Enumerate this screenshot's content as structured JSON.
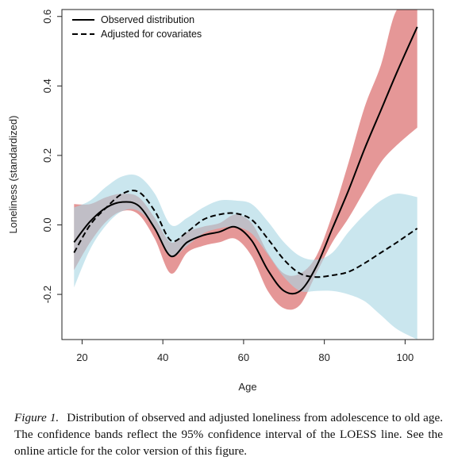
{
  "caption": {
    "label": "Figure 1.",
    "text": "Distribution of observed and adjusted loneliness from adolescence to old age. The confidence bands reflect the 95% confidence interval of the LOESS line. See the online article for the color version of this figure."
  },
  "chart_data": {
    "type": "line",
    "title": "",
    "xlabel": "Age",
    "ylabel": "Loneliness (standardized)",
    "xlim": [
      15,
      107
    ],
    "ylim": [
      -0.33,
      0.62
    ],
    "xticks": [
      20,
      40,
      60,
      80,
      100
    ],
    "yticks": [
      -0.2,
      0.0,
      0.2,
      0.4,
      0.6
    ],
    "ytick_labels": [
      "-0.2",
      "0.0",
      "0.2",
      "0.4",
      "0.6"
    ],
    "grid": false,
    "legend_position": "top-left",
    "colors": {
      "observed_band": "#e08585",
      "adjusted_band": "#a9d6e3",
      "line": "#000000"
    },
    "series": [
      {
        "name": "Observed distribution",
        "style": "solid",
        "x": [
          18,
          22,
          26,
          30,
          34,
          38,
          42,
          46,
          50,
          54,
          58,
          62,
          66,
          70,
          74,
          78,
          82,
          86,
          90,
          94,
          98,
          103
        ],
        "y": [
          -0.05,
          0.01,
          0.05,
          0.066,
          0.055,
          -0.01,
          -0.09,
          -0.05,
          -0.03,
          -0.02,
          -0.006,
          -0.045,
          -0.13,
          -0.19,
          -0.19,
          -0.12,
          -0.01,
          0.1,
          0.22,
          0.33,
          0.44,
          0.57
        ],
        "ci_lower": [
          -0.13,
          -0.05,
          0.01,
          0.04,
          0.03,
          -0.04,
          -0.14,
          -0.08,
          -0.06,
          -0.05,
          -0.04,
          -0.09,
          -0.19,
          -0.24,
          -0.23,
          -0.14,
          -0.05,
          0.02,
          0.1,
          0.18,
          0.23,
          0.28
        ],
        "ci_upper": [
          0.06,
          0.06,
          0.08,
          0.09,
          0.08,
          0.02,
          -0.05,
          -0.02,
          -0.005,
          0.005,
          0.03,
          0.005,
          -0.08,
          -0.14,
          -0.14,
          -0.09,
          0.03,
          0.18,
          0.34,
          0.46,
          0.62,
          0.62
        ]
      },
      {
        "name": "Adjusted for covariates",
        "style": "dashed",
        "x": [
          18,
          22,
          26,
          30,
          34,
          38,
          42,
          46,
          50,
          54,
          58,
          62,
          66,
          70,
          74,
          78,
          82,
          86,
          90,
          94,
          98,
          103
        ],
        "y": [
          -0.08,
          0.0,
          0.05,
          0.09,
          0.095,
          0.04,
          -0.045,
          -0.02,
          0.015,
          0.03,
          0.033,
          0.015,
          -0.04,
          -0.1,
          -0.14,
          -0.15,
          -0.145,
          -0.135,
          -0.11,
          -0.08,
          -0.05,
          -0.01
        ],
        "ci_lower": [
          -0.18,
          -0.07,
          0.0,
          0.04,
          0.04,
          -0.01,
          -0.09,
          -0.06,
          -0.025,
          -0.01,
          -0.005,
          -0.025,
          -0.085,
          -0.15,
          -0.19,
          -0.19,
          -0.19,
          -0.2,
          -0.22,
          -0.26,
          -0.3,
          -0.33
        ],
        "ci_upper": [
          0.05,
          0.07,
          0.11,
          0.14,
          0.14,
          0.09,
          0.0,
          0.02,
          0.05,
          0.07,
          0.07,
          0.06,
          0.01,
          -0.05,
          -0.09,
          -0.1,
          -0.08,
          -0.02,
          0.03,
          0.07,
          0.09,
          0.08
        ]
      }
    ]
  }
}
